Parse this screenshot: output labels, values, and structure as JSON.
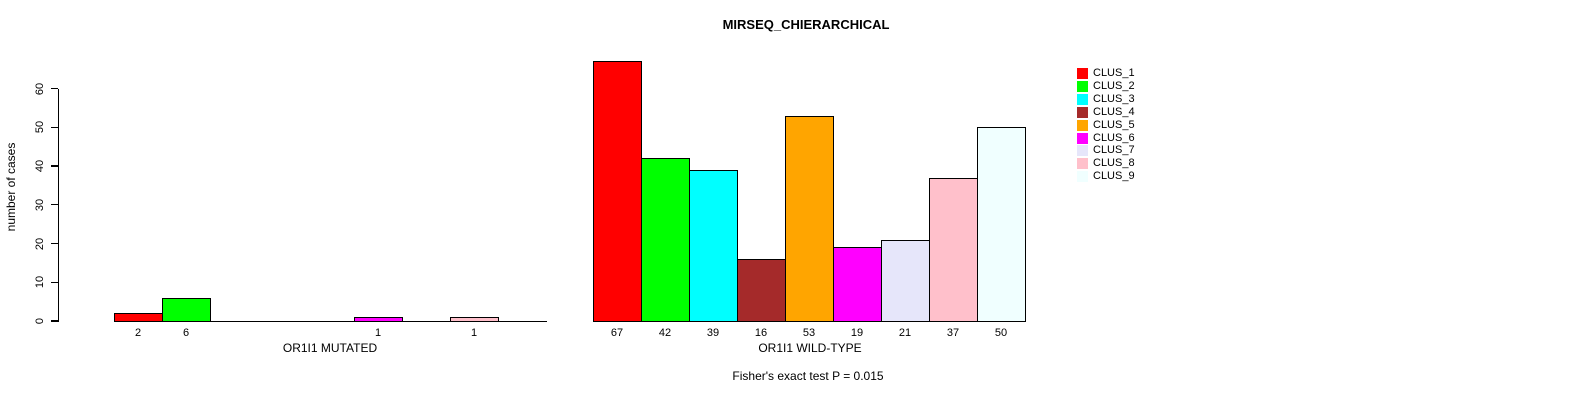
{
  "chart_data": {
    "type": "bar",
    "title": "MIRSEQ_CHIERARCHICAL",
    "ylabel": "number of cases",
    "ylim": [
      0,
      60
    ],
    "yticks": [
      0,
      10,
      20,
      30,
      40,
      50,
      60
    ],
    "grid": false,
    "legend_position": "right",
    "caption": "Fisher's exact test P = 0.015",
    "categories": [
      "CLUS_1",
      "CLUS_2",
      "CLUS_3",
      "CLUS_4",
      "CLUS_5",
      "CLUS_6",
      "CLUS_7",
      "CLUS_8",
      "CLUS_9"
    ],
    "colors": [
      "#FF0000",
      "#00FF00",
      "#00FFFF",
      "#A52A2A",
      "#FFA500",
      "#FF00FF",
      "#E6E6FA",
      "#FFC0CB",
      "#F0FFFF"
    ],
    "groups": [
      {
        "xlabel": "OR1I1 MUTATED",
        "values": [
          2,
          6,
          0,
          0,
          0,
          1,
          0,
          1,
          0
        ],
        "bar_labels": [
          "2",
          "6",
          "",
          "",
          "",
          "1",
          "",
          "1",
          ""
        ]
      },
      {
        "xlabel": "OR1I1 WILD-TYPE",
        "values": [
          67,
          42,
          39,
          16,
          53,
          19,
          21,
          37,
          50
        ],
        "bar_labels": [
          "67",
          "42",
          "39",
          "16",
          "53",
          "19",
          "21",
          "37",
          "50"
        ]
      }
    ]
  }
}
